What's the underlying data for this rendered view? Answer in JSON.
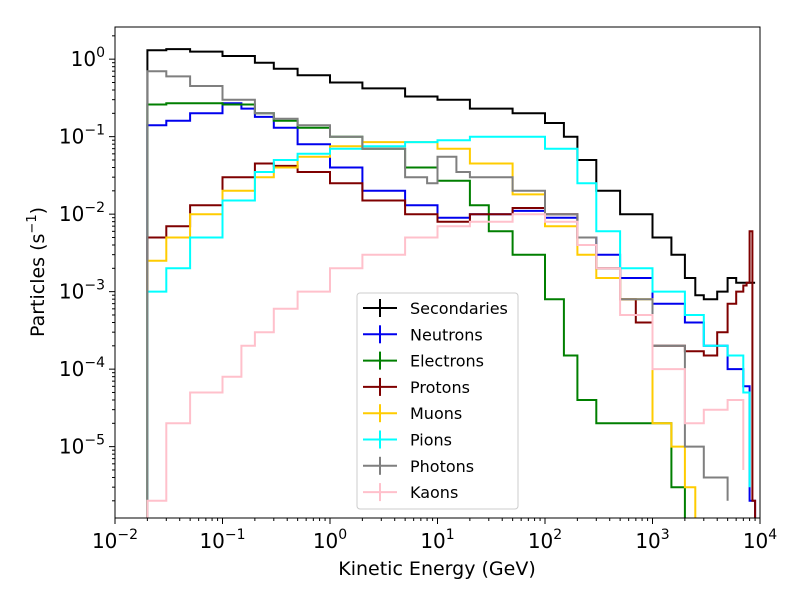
{
  "chart_data": {
    "type": "line",
    "title": "",
    "xlabel": "Kinetic Energy (GeV)",
    "ylabel": "Particles (s",
    "ylabel_sup": "−1",
    "ylabel_close": ")",
    "x_scale": "log",
    "y_scale": "log",
    "xlim": [
      0.01,
      10000
    ],
    "ylim": [
      1.2e-06,
      2.6
    ],
    "x_ticks": [
      {
        "value": 0.01,
        "base": "10",
        "exp": "−2"
      },
      {
        "value": 0.1,
        "base": "10",
        "exp": "−1"
      },
      {
        "value": 1,
        "base": "10",
        "exp": "0"
      },
      {
        "value": 10,
        "base": "10",
        "exp": "1"
      },
      {
        "value": 100,
        "base": "10",
        "exp": "2"
      },
      {
        "value": 1000,
        "base": "10",
        "exp": "3"
      },
      {
        "value": 10000,
        "base": "10",
        "exp": "4"
      }
    ],
    "y_ticks": [
      {
        "value": 1e-05,
        "base": "10",
        "exp": "−5"
      },
      {
        "value": 0.0001,
        "base": "10",
        "exp": "−4"
      },
      {
        "value": 0.001,
        "base": "10",
        "exp": "−3"
      },
      {
        "value": 0.01,
        "base": "10",
        "exp": "−2"
      },
      {
        "value": 0.1,
        "base": "10",
        "exp": "−1"
      },
      {
        "value": 1,
        "base": "10",
        "exp": "0"
      }
    ],
    "grid": false,
    "legend_position": "lower-center",
    "series": [
      {
        "name": "Secondaries",
        "color": "#000000",
        "x": [
          0.02,
          0.03,
          0.05,
          0.1,
          0.2,
          0.3,
          0.5,
          1,
          2,
          5,
          10,
          20,
          50,
          100,
          150,
          200,
          300,
          500,
          1000,
          1500,
          2000,
          2500,
          3000,
          4000,
          5000,
          6000,
          7000,
          7500,
          8000,
          9000
        ],
        "y": [
          1.3,
          1.35,
          1.25,
          1.1,
          0.9,
          0.75,
          0.62,
          0.5,
          0.42,
          0.33,
          0.3,
          0.23,
          0.2,
          0.15,
          0.1,
          0.05,
          0.02,
          0.01,
          0.005,
          0.003,
          0.0015,
          0.0009,
          0.0008,
          0.001,
          0.0015,
          0.0013,
          0.0013,
          0.0013,
          0.0013,
          0.0013
        ]
      },
      {
        "name": "Neutrons",
        "color": "#0000ee",
        "x": [
          0.02,
          0.03,
          0.05,
          0.1,
          0.15,
          0.2,
          0.3,
          0.5,
          1,
          2,
          5,
          10,
          20,
          50,
          100,
          200,
          300,
          500,
          1000,
          2000,
          3000,
          5000,
          7000,
          8000,
          9000
        ],
        "y": [
          0.14,
          0.16,
          0.2,
          0.27,
          0.23,
          0.18,
          0.13,
          0.08,
          0.04,
          0.02,
          0.013,
          0.009,
          0.01,
          0.011,
          0.009,
          0.005,
          0.003,
          0.0015,
          0.0007,
          0.0004,
          0.0002,
          0.0001,
          6e-05,
          2e-06,
          1e-06
        ]
      },
      {
        "name": "Electrons",
        "color": "#007f00",
        "x": [
          0.02,
          0.03,
          0.05,
          0.1,
          0.2,
          0.3,
          0.5,
          1,
          2,
          5,
          10,
          20,
          30,
          50,
          100,
          150,
          200,
          300,
          500,
          700,
          1000,
          1500,
          2000
        ],
        "y": [
          0.26,
          0.27,
          0.27,
          0.26,
          0.2,
          0.16,
          0.13,
          0.1,
          0.07,
          0.04,
          0.027,
          0.013,
          0.006,
          0.003,
          0.0008,
          0.00015,
          4e-05,
          2e-05,
          2e-05,
          2e-05,
          2e-05,
          3e-06,
          1e-06
        ]
      },
      {
        "name": "Protons",
        "color": "#7f0000",
        "x": [
          0.02,
          0.03,
          0.05,
          0.1,
          0.2,
          0.3,
          0.5,
          1,
          2,
          5,
          10,
          20,
          50,
          100,
          200,
          300,
          500,
          700,
          1000,
          2000,
          3000,
          4000,
          5000,
          6000,
          7000,
          7500,
          8000,
          8500,
          9000
        ],
        "y": [
          0.005,
          0.007,
          0.013,
          0.03,
          0.045,
          0.042,
          0.035,
          0.025,
          0.015,
          0.01,
          0.008,
          0.01,
          0.012,
          0.01,
          0.004,
          0.002,
          0.0008,
          0.0004,
          0.0002,
          0.00017,
          0.00015,
          0.0003,
          0.0007,
          0.001,
          0.0012,
          0.0013,
          0.006,
          2e-06,
          1e-06
        ]
      },
      {
        "name": "Muons",
        "color": "#ffcc00",
        "x": [
          0.02,
          0.03,
          0.05,
          0.1,
          0.2,
          0.3,
          0.5,
          1,
          2,
          5,
          10,
          20,
          50,
          100,
          200,
          300,
          500,
          1000,
          1500,
          2000,
          2500
        ],
        "y": [
          0.0025,
          0.005,
          0.01,
          0.02,
          0.03,
          0.04,
          0.055,
          0.075,
          0.085,
          0.085,
          0.07,
          0.045,
          0.018,
          0.007,
          0.003,
          0.0015,
          0.0008,
          2e-05,
          1e-05,
          3e-06,
          1e-06
        ]
      },
      {
        "name": "Pions",
        "color": "#00ffff",
        "x": [
          0.02,
          0.03,
          0.05,
          0.1,
          0.2,
          0.3,
          0.5,
          1,
          2,
          5,
          10,
          20,
          50,
          100,
          200,
          300,
          500,
          700,
          1000,
          2000,
          3000,
          5000,
          7000,
          8000
        ],
        "y": [
          0.001,
          0.002,
          0.005,
          0.015,
          0.035,
          0.05,
          0.06,
          0.07,
          0.075,
          0.085,
          0.09,
          0.1,
          0.1,
          0.07,
          0.025,
          0.006,
          0.002,
          0.002,
          0.001,
          0.0005,
          0.0002,
          0.00015,
          5e-05,
          3e-06
        ]
      },
      {
        "name": "Photons",
        "color": "#7f7f7f",
        "x": [
          0.02,
          0.03,
          0.05,
          0.1,
          0.2,
          0.3,
          0.5,
          1,
          2,
          5,
          8,
          10,
          15,
          20,
          50,
          100,
          200,
          300,
          500,
          1000,
          2000,
          3000,
          5000
        ],
        "y": [
          0.7,
          0.6,
          0.45,
          0.3,
          0.2,
          0.17,
          0.14,
          0.1,
          0.07,
          0.03,
          0.025,
          0.055,
          0.035,
          0.03,
          0.02,
          0.01,
          0.005,
          0.002,
          0.0008,
          0.0002,
          1e-05,
          4e-06,
          2e-06
        ]
      },
      {
        "name": "Kaons",
        "color": "#ffc0cb",
        "x": [
          0.02,
          0.03,
          0.05,
          0.1,
          0.15,
          0.2,
          0.3,
          0.5,
          1,
          2,
          5,
          10,
          20,
          50,
          100,
          200,
          300,
          500,
          1000,
          2000,
          3000,
          5000,
          7000
        ],
        "y": [
          2e-06,
          2e-05,
          5e-05,
          8e-05,
          0.0002,
          0.0003,
          0.0006,
          0.001,
          0.002,
          0.003,
          0.005,
          0.007,
          0.008,
          0.01,
          0.008,
          0.004,
          0.002,
          0.0005,
          0.0001,
          2e-05,
          3e-05,
          4e-05,
          5e-06
        ]
      }
    ]
  }
}
